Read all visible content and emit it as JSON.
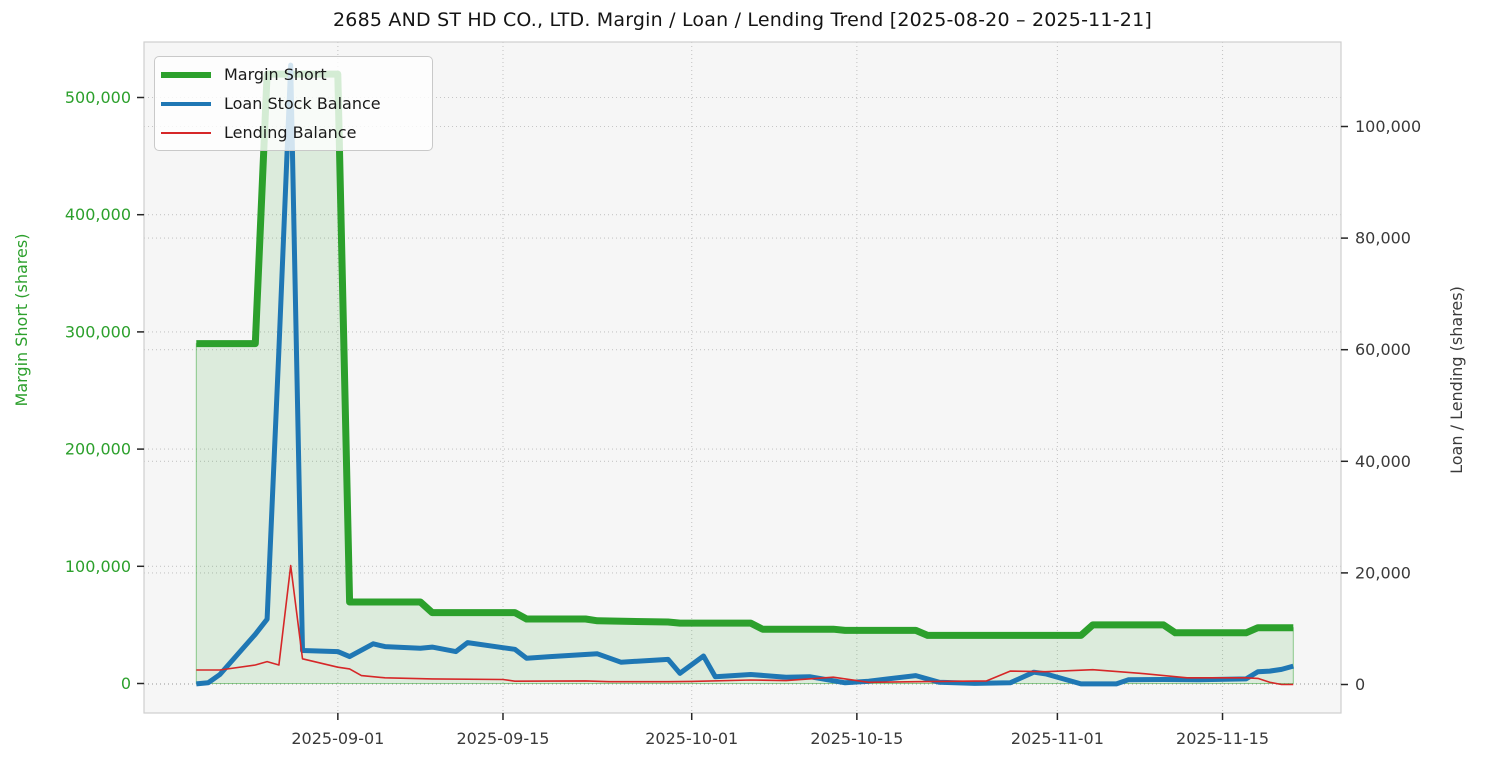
{
  "figure": {
    "background": "#ffffff",
    "plot_background": "#f6f6f6",
    "grid_color": "#c6c6c6",
    "spine_color": "#cfcfcf",
    "tick_color": "#262626"
  },
  "chart_data": {
    "type": "line",
    "title": "2685 AND ST HD CO., LTD. Margin / Loan / Lending Trend [2025-08-20 – 2025-11-21]",
    "x_start_date": "2025-08-20",
    "x_end_date": "2025-11-21",
    "x_tick_labels": [
      "2025-09-01",
      "2025-09-15",
      "2025-10-01",
      "2025-10-15",
      "2025-11-01",
      "2025-11-15"
    ],
    "left_axis": {
      "label": "Margin Short (shares)",
      "color": "#2ca02c",
      "ticks": [
        0,
        100000,
        200000,
        300000,
        400000,
        500000
      ],
      "range": [
        0,
        573000
      ]
    },
    "right_axis": {
      "label": "Loan / Lending (shares)",
      "color": "#3a3a3a",
      "ticks": [
        0,
        20000,
        40000,
        60000,
        80000,
        100000
      ],
      "range": [
        0,
        115000
      ]
    },
    "grid": {
      "visible": true,
      "style": "dotted",
      "both_y_axes": true
    },
    "legend": {
      "position": "upper-left",
      "entries": [
        "Margin Short",
        "Loan Stock Balance",
        "Lending Balance"
      ]
    },
    "series": [
      {
        "name": "Margin Short",
        "axis": "left",
        "color": "#2ca02c",
        "width": 7,
        "fill": "rgba(44,160,44,0.13)",
        "fill_edge": "rgba(44,160,44,0.5)",
        "points": [
          [
            "2025-08-20",
            290000
          ],
          [
            "2025-08-25",
            290000
          ],
          [
            "2025-08-26",
            520000
          ],
          [
            "2025-09-01",
            520000
          ],
          [
            "2025-09-02",
            69500
          ],
          [
            "2025-09-08",
            69500
          ],
          [
            "2025-09-09",
            60500
          ],
          [
            "2025-09-16",
            60500
          ],
          [
            "2025-09-17",
            55000
          ],
          [
            "2025-09-22",
            55000
          ],
          [
            "2025-09-23",
            53500
          ],
          [
            "2025-09-29",
            52500
          ],
          [
            "2025-09-30",
            51500
          ],
          [
            "2025-10-06",
            51500
          ],
          [
            "2025-10-07",
            46300
          ],
          [
            "2025-10-13",
            46300
          ],
          [
            "2025-10-14",
            45300
          ],
          [
            "2025-10-20",
            45300
          ],
          [
            "2025-10-21",
            41000
          ],
          [
            "2025-11-03",
            41000
          ],
          [
            "2025-11-04",
            50000
          ],
          [
            "2025-11-10",
            50000
          ],
          [
            "2025-11-11",
            43300
          ],
          [
            "2025-11-17",
            43300
          ],
          [
            "2025-11-18",
            47600
          ],
          [
            "2025-11-21",
            47600
          ]
        ]
      },
      {
        "name": "Loan Stock Balance",
        "axis": "right",
        "color": "#1f77b4",
        "width": 5,
        "points": [
          [
            "2025-08-20",
            100
          ],
          [
            "2025-08-21",
            300
          ],
          [
            "2025-08-22",
            1800
          ],
          [
            "2025-08-25",
            9000
          ],
          [
            "2025-08-26",
            11700
          ],
          [
            "2025-08-27",
            60000
          ],
          [
            "2025-08-28",
            111000
          ],
          [
            "2025-08-29",
            6100
          ],
          [
            "2025-09-01",
            5900
          ],
          [
            "2025-09-02",
            5000
          ],
          [
            "2025-09-04",
            7300
          ],
          [
            "2025-09-05",
            6800
          ],
          [
            "2025-09-08",
            6500
          ],
          [
            "2025-09-09",
            6700
          ],
          [
            "2025-09-11",
            5900
          ],
          [
            "2025-09-12",
            7500
          ],
          [
            "2025-09-15",
            6600
          ],
          [
            "2025-09-16",
            6300
          ],
          [
            "2025-09-17",
            4700
          ],
          [
            "2025-09-19",
            5000
          ],
          [
            "2025-09-23",
            5500
          ],
          [
            "2025-09-25",
            4000
          ],
          [
            "2025-09-29",
            4500
          ],
          [
            "2025-09-30",
            2000
          ],
          [
            "2025-10-02",
            5100
          ],
          [
            "2025-10-03",
            1400
          ],
          [
            "2025-10-06",
            1800
          ],
          [
            "2025-10-09",
            1300
          ],
          [
            "2025-10-11",
            1400
          ],
          [
            "2025-10-14",
            300
          ],
          [
            "2025-10-16",
            600
          ],
          [
            "2025-10-20",
            1600
          ],
          [
            "2025-10-22",
            400
          ],
          [
            "2025-10-25",
            200
          ],
          [
            "2025-10-28",
            300
          ],
          [
            "2025-10-30",
            2200
          ],
          [
            "2025-10-31",
            1900
          ],
          [
            "2025-11-03",
            100
          ],
          [
            "2025-11-06",
            100
          ],
          [
            "2025-11-07",
            850
          ],
          [
            "2025-11-10",
            900
          ],
          [
            "2025-11-13",
            850
          ],
          [
            "2025-11-17",
            1000
          ],
          [
            "2025-11-18",
            2300
          ],
          [
            "2025-11-19",
            2400
          ],
          [
            "2025-11-20",
            2700
          ],
          [
            "2025-11-21",
            3300
          ]
        ]
      },
      {
        "name": "Lending Balance",
        "axis": "right",
        "color": "#d62728",
        "width": 1.6,
        "points": [
          [
            "2025-08-20",
            2600
          ],
          [
            "2025-08-22",
            2600
          ],
          [
            "2025-08-25",
            3500
          ],
          [
            "2025-08-26",
            4100
          ],
          [
            "2025-08-27",
            3500
          ],
          [
            "2025-08-28",
            21300
          ],
          [
            "2025-08-29",
            4600
          ],
          [
            "2025-09-01",
            3100
          ],
          [
            "2025-09-02",
            2800
          ],
          [
            "2025-09-03",
            1600
          ],
          [
            "2025-09-05",
            1200
          ],
          [
            "2025-09-09",
            1000
          ],
          [
            "2025-09-15",
            900
          ],
          [
            "2025-09-16",
            600
          ],
          [
            "2025-09-22",
            650
          ],
          [
            "2025-09-24",
            500
          ],
          [
            "2025-09-29",
            500
          ],
          [
            "2025-10-01",
            550
          ],
          [
            "2025-10-06",
            800
          ],
          [
            "2025-10-09",
            700
          ],
          [
            "2025-10-13",
            1300
          ],
          [
            "2025-10-16",
            400
          ],
          [
            "2025-10-20",
            500
          ],
          [
            "2025-10-26",
            650
          ],
          [
            "2025-10-28",
            2400
          ],
          [
            "2025-10-31",
            2300
          ],
          [
            "2025-11-04",
            2650
          ],
          [
            "2025-11-08",
            2000
          ],
          [
            "2025-11-12",
            1200
          ],
          [
            "2025-11-17",
            1200
          ],
          [
            "2025-11-18",
            1100
          ],
          [
            "2025-11-19",
            400
          ],
          [
            "2025-11-20",
            0
          ],
          [
            "2025-11-21",
            0
          ]
        ]
      }
    ]
  }
}
